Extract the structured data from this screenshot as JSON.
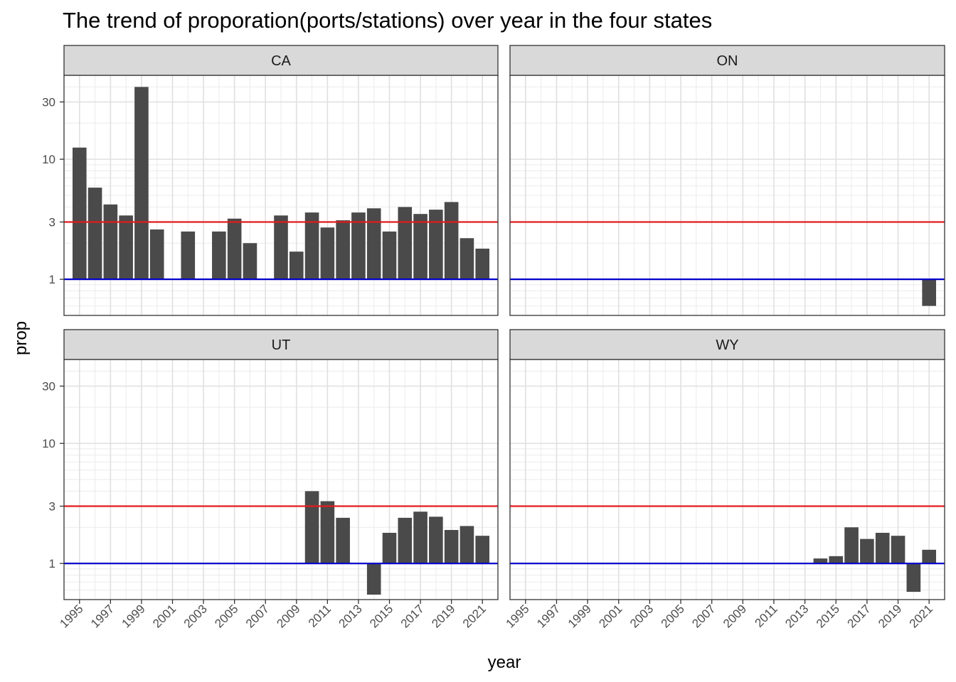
{
  "chart_data": {
    "type": "bar",
    "title": "The trend of proporation(ports/stations) over year in the four states",
    "xlabel": "year",
    "ylabel": "prop",
    "y_scale": "log10",
    "ylim": [
      0.5,
      50
    ],
    "y_ticks": [
      1,
      3,
      10,
      30
    ],
    "y_tick_labels": [
      "1",
      "3",
      "10",
      "30"
    ],
    "x_range": [
      1994,
      2022
    ],
    "x_ticks": [
      1995,
      1997,
      1999,
      2001,
      2003,
      2005,
      2007,
      2009,
      2011,
      2013,
      2015,
      2017,
      2019,
      2021
    ],
    "x_tick_labels": [
      "1995",
      "1997",
      "1999",
      "2001",
      "2003",
      "2005",
      "2007",
      "2009",
      "2011",
      "2013",
      "2015",
      "2017",
      "2019",
      "2021"
    ],
    "grid": true,
    "reference_lines": [
      {
        "y": 3,
        "color": "#e31a1c"
      },
      {
        "y": 1,
        "color": "#0000cc"
      }
    ],
    "bar_color": "#4a4a4a",
    "panels": [
      {
        "label": "CA",
        "data": [
          {
            "x": 1995,
            "y": 12.5
          },
          {
            "x": 1996,
            "y": 5.8
          },
          {
            "x": 1997,
            "y": 4.2
          },
          {
            "x": 1998,
            "y": 3.4
          },
          {
            "x": 1999,
            "y": 40
          },
          {
            "x": 2000,
            "y": 2.6
          },
          {
            "x": 2002,
            "y": 2.5
          },
          {
            "x": 2004,
            "y": 2.5
          },
          {
            "x": 2005,
            "y": 3.2
          },
          {
            "x": 2006,
            "y": 2.0
          },
          {
            "x": 2008,
            "y": 3.4
          },
          {
            "x": 2009,
            "y": 1.7
          },
          {
            "x": 2010,
            "y": 3.6
          },
          {
            "x": 2011,
            "y": 2.7
          },
          {
            "x": 2012,
            "y": 3.1
          },
          {
            "x": 2013,
            "y": 3.6
          },
          {
            "x": 2014,
            "y": 3.9
          },
          {
            "x": 2015,
            "y": 2.5
          },
          {
            "x": 2016,
            "y": 4.0
          },
          {
            "x": 2017,
            "y": 3.5
          },
          {
            "x": 2018,
            "y": 3.8
          },
          {
            "x": 2019,
            "y": 4.4
          },
          {
            "x": 2020,
            "y": 2.2
          },
          {
            "x": 2021,
            "y": 1.8
          }
        ]
      },
      {
        "label": "ON",
        "data": [
          {
            "x": 2021,
            "y": 0.6
          }
        ]
      },
      {
        "label": "UT",
        "data": [
          {
            "x": 2010,
            "y": 4.0
          },
          {
            "x": 2011,
            "y": 3.3
          },
          {
            "x": 2012,
            "y": 2.4
          },
          {
            "x": 2014,
            "y": 0.55
          },
          {
            "x": 2015,
            "y": 1.8
          },
          {
            "x": 2016,
            "y": 2.4
          },
          {
            "x": 2017,
            "y": 2.7
          },
          {
            "x": 2018,
            "y": 2.45
          },
          {
            "x": 2019,
            "y": 1.9
          },
          {
            "x": 2020,
            "y": 2.05
          },
          {
            "x": 2021,
            "y": 1.7
          }
        ]
      },
      {
        "label": "WY",
        "data": [
          {
            "x": 2014,
            "y": 1.1
          },
          {
            "x": 2015,
            "y": 1.15
          },
          {
            "x": 2016,
            "y": 2.0
          },
          {
            "x": 2017,
            "y": 1.6
          },
          {
            "x": 2018,
            "y": 1.8
          },
          {
            "x": 2019,
            "y": 1.7
          },
          {
            "x": 2020,
            "y": 0.58
          },
          {
            "x": 2021,
            "y": 1.3
          }
        ]
      }
    ]
  }
}
